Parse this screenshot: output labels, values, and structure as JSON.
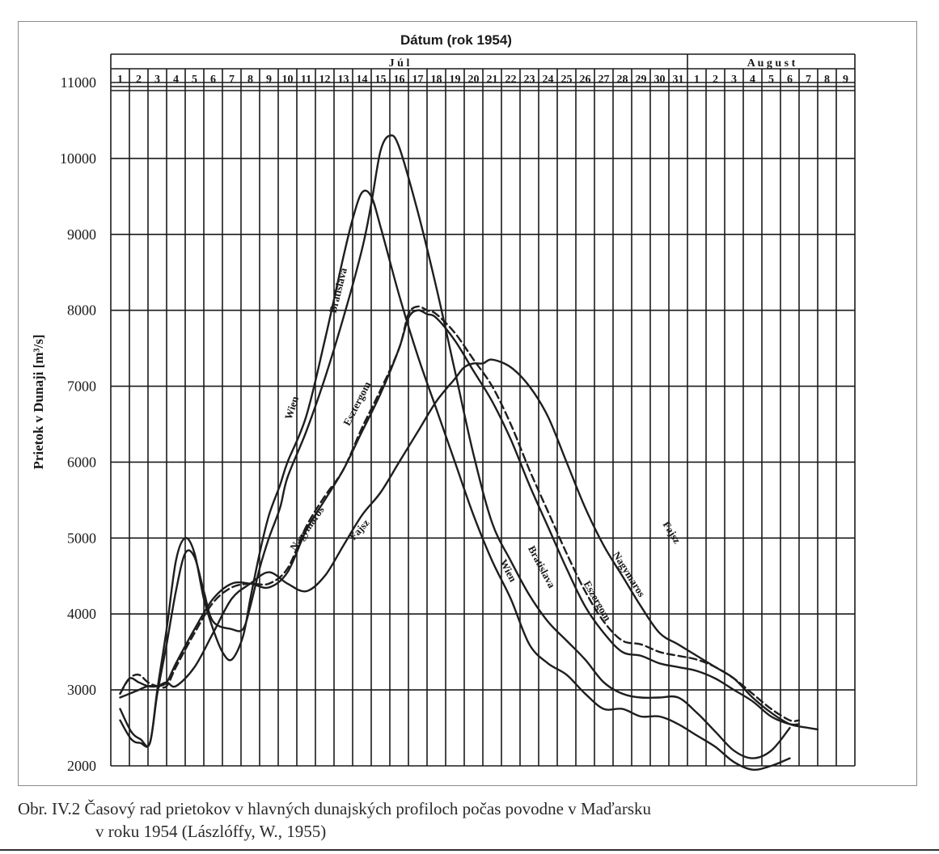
{
  "chart_data": {
    "type": "line",
    "title": "Dátum (rok 1954)",
    "ylabel": "Prietok v Dunaji [m³/s]",
    "months": [
      {
        "name": "J ú l",
        "first_day": 1,
        "last_day": 31
      },
      {
        "name": "A u g u s t",
        "first_day": 1,
        "last_day": 9
      }
    ],
    "day_labels": [
      "1",
      "2",
      "3",
      "4",
      "5",
      "6",
      "7",
      "8",
      "9",
      "10",
      "11",
      "12",
      "13",
      "14",
      "15",
      "16",
      "17",
      "18",
      "19",
      "20",
      "21",
      "22",
      "23",
      "24",
      "25",
      "26",
      "27",
      "28",
      "29",
      "30",
      "31",
      "1",
      "2",
      "3",
      "4",
      "5",
      "6",
      "7",
      "8",
      "9"
    ],
    "ylim": [
      2000,
      11000
    ],
    "yticks": [
      2000,
      3000,
      4000,
      5000,
      6000,
      7000,
      8000,
      9000,
      10000,
      11000
    ],
    "grid": true,
    "series": [
      {
        "name": "Wien",
        "dash": "",
        "x": [
          1,
          1.6,
          2.1,
          2.6,
          3.0,
          3.5,
          4.0,
          4.5,
          5.0,
          5.5,
          6.0,
          6.5,
          7.0,
          7.6,
          8.0,
          8.5,
          9.0,
          9.6,
          10.0,
          11.0,
          12.0,
          13.0,
          13.5,
          14.0,
          14.5,
          15.0,
          16.0,
          17.0,
          18.0,
          19.0,
          20.0,
          21.0,
          22.0,
          23.0,
          24.0,
          25.0,
          26.0,
          27.0,
          28.0,
          29.0,
          30.0,
          31.0,
          32.0,
          33.0,
          34.0,
          35.0,
          36.0,
          37.0
        ],
        "y": [
          2750,
          2450,
          2350,
          2300,
          3000,
          3800,
          4700,
          5000,
          4800,
          4200,
          3800,
          3500,
          3400,
          3700,
          4200,
          4800,
          5300,
          5700,
          6000,
          6600,
          7600,
          8700,
          9200,
          9550,
          9500,
          9100,
          8200,
          7400,
          6700,
          6000,
          5300,
          4700,
          4200,
          3600,
          3350,
          3200,
          2950,
          2750,
          2750,
          2650,
          2650,
          2550,
          2400,
          2250,
          2050,
          1950,
          2000,
          2100
        ]
      },
      {
        "name": "Bratislava",
        "dash": "",
        "x": [
          1,
          1.6,
          2.1,
          2.6,
          3.0,
          3.5,
          4.0,
          4.5,
          5.0,
          5.5,
          6.0,
          7.0,
          7.6,
          8.0,
          8.5,
          9.0,
          9.6,
          10.0,
          11.0,
          12.0,
          13.0,
          14.0,
          14.5,
          15.0,
          15.5,
          16.0,
          17.0,
          18.0,
          19.0,
          20.0,
          21.0,
          22.0,
          23.0,
          24.0,
          25.0,
          26.0,
          27.0,
          28.0,
          29.0,
          30.0,
          31.0,
          32.0,
          33.0,
          34.0,
          35.0,
          36.0,
          37.0
        ],
        "y": [
          2600,
          2350,
          2300,
          2300,
          2950,
          3600,
          4300,
          4800,
          4750,
          4300,
          3900,
          3800,
          3800,
          4100,
          4600,
          5000,
          5400,
          5800,
          6400,
          7100,
          7900,
          8800,
          9400,
          10100,
          10300,
          10150,
          9300,
          8300,
          7200,
          6100,
          5200,
          4700,
          4250,
          3900,
          3650,
          3400,
          3100,
          2950,
          2900,
          2900,
          2900,
          2700,
          2450,
          2200,
          2100,
          2200,
          2500
        ]
      },
      {
        "name": "Esztergom",
        "dash": "",
        "x": [
          1,
          1.5,
          2.0,
          2.5,
          3.0,
          3.5,
          4.0,
          5.0,
          6.0,
          7.0,
          8.0,
          9.0,
          10.0,
          11.0,
          12.0,
          13.0,
          14.0,
          15.0,
          16.0,
          16.5,
          17.0,
          17.5,
          18.0,
          19.0,
          20.0,
          21.0,
          22.0,
          23.0,
          24.0,
          25.0,
          26.0,
          27.0,
          28.0,
          29.0,
          30.0,
          31.0,
          32.0,
          33.0,
          34.0,
          35.0,
          36.0,
          37.0,
          37.5
        ],
        "y": [
          2950,
          3150,
          3100,
          3050,
          3050,
          3100,
          3350,
          3800,
          4200,
          4400,
          4400,
          4350,
          4550,
          5100,
          5500,
          5900,
          6400,
          6900,
          7500,
          7900,
          8000,
          7950,
          7900,
          7600,
          7200,
          6800,
          6300,
          5700,
          5150,
          4600,
          4100,
          3750,
          3500,
          3450,
          3350,
          3300,
          3250,
          3150,
          3000,
          2850,
          2650,
          2550,
          2550
        ]
      },
      {
        "name": "Nagymaros",
        "dash": "9 5",
        "x": [
          1,
          1.5,
          2.0,
          2.5,
          3.0,
          3.5,
          4.0,
          5.0,
          6.0,
          7.0,
          8.0,
          9.0,
          10.0,
          11.0,
          12.0,
          13.0,
          14.0,
          15.0,
          16.0,
          16.5,
          17.0,
          17.5,
          18.0,
          19.0,
          20.0,
          21.0,
          22.0,
          23.0,
          24.0,
          25.0,
          26.0,
          27.0,
          28.0,
          29.0,
          30.0,
          31.0,
          32.0,
          33.0,
          34.0,
          35.0,
          36.0,
          37.0,
          37.5
        ],
        "y": [
          2950,
          3150,
          3200,
          3100,
          3050,
          3050,
          3300,
          3750,
          4150,
          4350,
          4400,
          4400,
          4600,
          5150,
          5550,
          5900,
          6450,
          6950,
          7500,
          7950,
          8050,
          8000,
          7950,
          7700,
          7350,
          7000,
          6500,
          5900,
          5350,
          4800,
          4300,
          3900,
          3650,
          3600,
          3500,
          3450,
          3400,
          3300,
          3150,
          2950,
          2750,
          2600,
          2600
        ]
      },
      {
        "name": "Fajsz",
        "dash": "",
        "x": [
          1,
          1.5,
          2.0,
          2.5,
          3.0,
          3.5,
          4.0,
          5.0,
          6.0,
          7.0,
          8.0,
          9.0,
          10.0,
          11.0,
          12.0,
          13.0,
          14.0,
          15.0,
          16.0,
          17.0,
          18.0,
          19.0,
          19.5,
          20.0,
          20.5,
          21.0,
          22.0,
          23.0,
          24.0,
          25.0,
          26.0,
          27.0,
          28.0,
          29.0,
          30.0,
          31.0,
          32.0,
          33.0,
          34.0,
          35.0,
          36.0,
          37.0,
          38.0,
          38.5
        ],
        "y": [
          2900,
          2950,
          3000,
          3050,
          3050,
          3100,
          3050,
          3300,
          3750,
          4200,
          4400,
          4550,
          4400,
          4300,
          4500,
          4900,
          5300,
          5600,
          6000,
          6400,
          6800,
          7100,
          7250,
          7300,
          7300,
          7350,
          7250,
          7000,
          6600,
          6000,
          5400,
          4900,
          4500,
          4100,
          3750,
          3600,
          3450,
          3300,
          3150,
          2900,
          2700,
          2550,
          2500,
          2480
        ]
      }
    ],
    "curve_labels": [
      {
        "text": "Wien",
        "day": 10.4,
        "value": 6700,
        "angle": -72
      },
      {
        "text": "Bratislava",
        "day": 12.9,
        "value": 8250,
        "angle": -76
      },
      {
        "text": "Esztergom",
        "day": 13.9,
        "value": 6750,
        "angle": -63
      },
      {
        "text": "Nagymaros",
        "day": 11.2,
        "value": 5100,
        "angle": -55
      },
      {
        "text": "Fajsz",
        "day": 14.0,
        "value": 5080,
        "angle": -48
      },
      {
        "text": "Wien",
        "day": 21.7,
        "value": 4550,
        "angle": 62
      },
      {
        "text": "Bratislava",
        "day": 23.5,
        "value": 4600,
        "angle": 62
      },
      {
        "text": "Eszergom",
        "day": 26.5,
        "value": 4150,
        "angle": 60
      },
      {
        "text": "Nagymaros",
        "day": 28.2,
        "value": 4500,
        "angle": 58
      },
      {
        "text": "Fajsz",
        "day": 30.5,
        "value": 5050,
        "angle": 58
      }
    ]
  },
  "caption": {
    "line1": "Obr. IV.2 Časový rad prietokov v hlavných dunajských profiloch počas povodne v Maďarsku",
    "line2": "v roku 1954 (Lászlóffy, W., 1955)"
  },
  "colors": {
    "line": "#1e1e1e",
    "grid": "#1a1a1a",
    "caption": "#2a2a2a"
  }
}
